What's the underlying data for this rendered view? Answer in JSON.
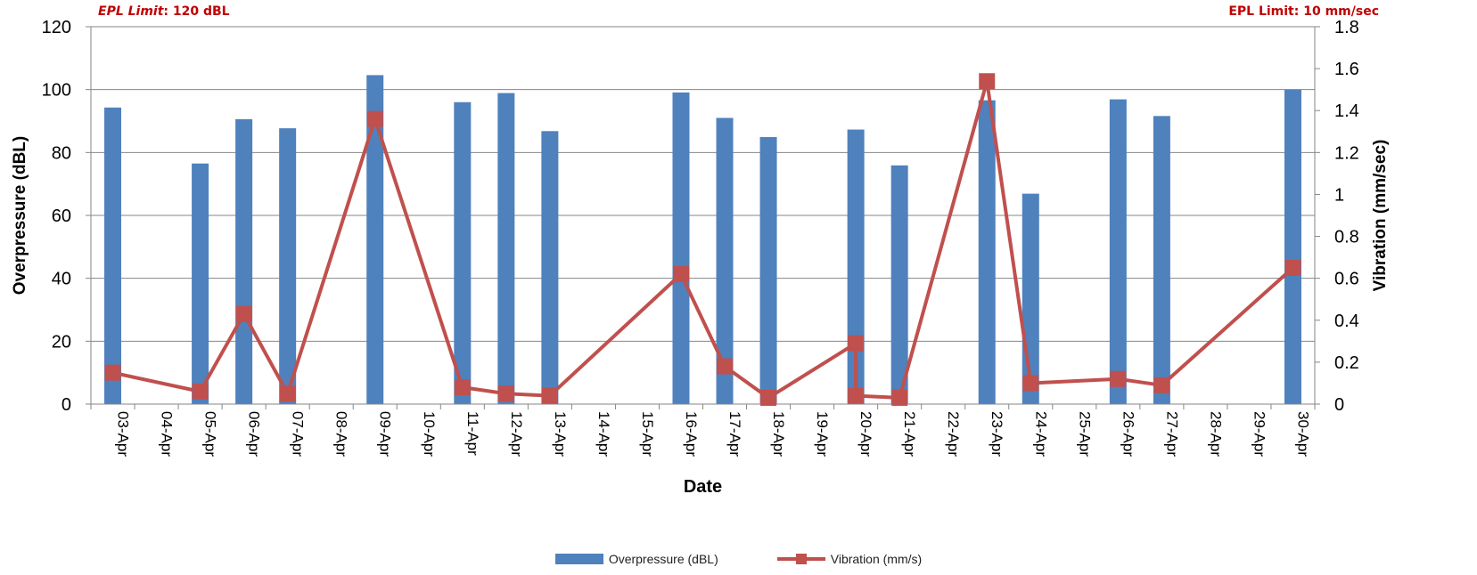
{
  "chart_data": {
    "type": "bar",
    "title": "",
    "xlabel": "Date",
    "ylabel": "Overpressure (dBL)",
    "y2label": "Vibration (mm/sec)",
    "annotations": {
      "left_prefix": "EPL Limit",
      "left_suffix": ": 120 dBL",
      "right": "EPL Limit: 10 mm/sec"
    },
    "categories": [
      "03-Apr",
      "04-Apr",
      "05-Apr",
      "06-Apr",
      "07-Apr",
      "08-Apr",
      "09-Apr",
      "10-Apr",
      "11-Apr",
      "12-Apr",
      "13-Apr",
      "14-Apr",
      "15-Apr",
      "16-Apr",
      "17-Apr",
      "18-Apr",
      "19-Apr",
      "20-Apr",
      "21-Apr",
      "22-Apr",
      "23-Apr",
      "24-Apr",
      "25-Apr",
      "26-Apr",
      "27-Apr",
      "28-Apr",
      "29-Apr",
      "30-Apr"
    ],
    "ylim": [
      0,
      120
    ],
    "yticks": [
      "0",
      "20",
      "40",
      "60",
      "80",
      "100",
      "120"
    ],
    "y2lim": [
      0,
      1.8
    ],
    "y2ticks": [
      "0",
      "0.2",
      "0.4",
      "0.6",
      "0.8",
      "1",
      "1.2",
      "1.4",
      "1.6",
      "1.8"
    ],
    "grid": true,
    "legend_position": "bottom",
    "series": [
      {
        "name": "Overpressure (dBL)",
        "type": "bar",
        "axis": "left",
        "color": "#4f81bd",
        "values": [
          94.3,
          null,
          76.5,
          90.6,
          87.7,
          null,
          104.6,
          null,
          96.0,
          98.9,
          86.8,
          null,
          null,
          99.1,
          91.0,
          84.9,
          null,
          87.3,
          75.9,
          null,
          96.6,
          66.9,
          null,
          96.9,
          91.6,
          null,
          null,
          100.0
        ]
      },
      {
        "name": "Vibration (mm/s)",
        "type": "line",
        "axis": "right",
        "color": "#c0504d",
        "values": [
          0.15,
          null,
          0.06,
          0.43,
          0.05,
          null,
          1.36,
          null,
          0.08,
          0.05,
          0.04,
          null,
          null,
          0.62,
          0.18,
          0.03,
          null,
          0.04,
          0.03,
          null,
          1.54,
          0.1,
          null,
          0.12,
          0.09,
          null,
          null,
          0.65
        ],
        "extra_points": [
          {
            "category": "20-Apr",
            "value": 0.29
          }
        ]
      }
    ]
  }
}
